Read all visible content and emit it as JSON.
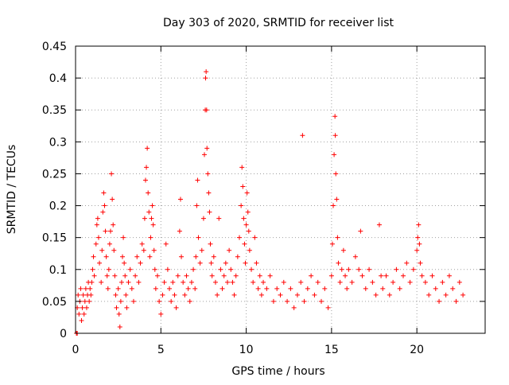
{
  "chart_data": {
    "type": "scatter",
    "title": "Day 303 of 2020, SRMTID for receiver list",
    "xlabel": "GPS time / hours",
    "ylabel": "SRMTID / TECUs",
    "xlim": [
      0,
      24
    ],
    "ylim": [
      0,
      0.45
    ],
    "grid": true,
    "marker": "+",
    "marker_color": "#ff0000",
    "x_ticks": [
      {
        "value": 0,
        "label": "0"
      },
      {
        "value": 5,
        "label": "5"
      },
      {
        "value": 10,
        "label": "10"
      },
      {
        "value": 15,
        "label": "15"
      },
      {
        "value": 20,
        "label": "20"
      }
    ],
    "y_ticks": [
      {
        "value": 0,
        "label": "0"
      },
      {
        "value": 0.05,
        "label": "0.05"
      },
      {
        "value": 0.1,
        "label": "0.1"
      },
      {
        "value": 0.15,
        "label": "0.15"
      },
      {
        "value": 0.2,
        "label": "0.2"
      },
      {
        "value": 0.25,
        "label": "0.25"
      },
      {
        "value": 0.3,
        "label": "0.3"
      },
      {
        "value": 0.35,
        "label": "0.35"
      },
      {
        "value": 0.4,
        "label": "0.4"
      },
      {
        "value": 0.45,
        "label": "0.45"
      }
    ],
    "series": [
      {
        "name": "SRMTID",
        "points": [
          [
            0.05,
            0.0
          ],
          [
            0.1,
            0.0
          ],
          [
            0.1,
            0.04
          ],
          [
            0.15,
            0.06
          ],
          [
            0.2,
            0.03
          ],
          [
            0.25,
            0.05
          ],
          [
            0.3,
            0.07
          ],
          [
            0.35,
            0.02
          ],
          [
            0.4,
            0.04
          ],
          [
            0.45,
            0.06
          ],
          [
            0.5,
            0.03
          ],
          [
            0.55,
            0.05
          ],
          [
            0.6,
            0.07
          ],
          [
            0.65,
            0.04
          ],
          [
            0.7,
            0.06
          ],
          [
            0.75,
            0.08
          ],
          [
            0.8,
            0.05
          ],
          [
            0.85,
            0.07
          ],
          [
            0.9,
            0.06
          ],
          [
            0.95,
            0.08
          ],
          [
            1.0,
            0.1
          ],
          [
            1.05,
            0.12
          ],
          [
            1.1,
            0.09
          ],
          [
            1.2,
            0.14
          ],
          [
            1.25,
            0.17
          ],
          [
            1.3,
            0.18
          ],
          [
            1.35,
            0.15
          ],
          [
            1.4,
            0.11
          ],
          [
            1.5,
            0.08
          ],
          [
            1.55,
            0.13
          ],
          [
            1.6,
            0.19
          ],
          [
            1.65,
            0.22
          ],
          [
            1.7,
            0.2
          ],
          [
            1.75,
            0.16
          ],
          [
            1.8,
            0.12
          ],
          [
            1.85,
            0.09
          ],
          [
            1.9,
            0.07
          ],
          [
            1.95,
            0.1
          ],
          [
            2.0,
            0.14
          ],
          [
            2.05,
            0.16
          ],
          [
            2.1,
            0.25
          ],
          [
            2.15,
            0.21
          ],
          [
            2.2,
            0.17
          ],
          [
            2.25,
            0.13
          ],
          [
            2.3,
            0.09
          ],
          [
            2.35,
            0.06
          ],
          [
            2.4,
            0.04
          ],
          [
            2.5,
            0.07
          ],
          [
            2.55,
            0.03
          ],
          [
            2.6,
            0.01
          ],
          [
            2.65,
            0.05
          ],
          [
            2.7,
            0.08
          ],
          [
            2.75,
            0.12
          ],
          [
            2.8,
            0.15
          ],
          [
            2.85,
            0.11
          ],
          [
            2.9,
            0.09
          ],
          [
            2.95,
            0.06
          ],
          [
            3.0,
            0.04
          ],
          [
            3.1,
            0.08
          ],
          [
            3.2,
            0.1
          ],
          [
            3.3,
            0.07
          ],
          [
            3.4,
            0.05
          ],
          [
            3.5,
            0.09
          ],
          [
            3.6,
            0.12
          ],
          [
            3.7,
            0.08
          ],
          [
            3.8,
            0.11
          ],
          [
            3.9,
            0.14
          ],
          [
            4.0,
            0.13
          ],
          [
            4.05,
            0.18
          ],
          [
            4.1,
            0.24
          ],
          [
            4.15,
            0.26
          ],
          [
            4.2,
            0.29
          ],
          [
            4.25,
            0.22
          ],
          [
            4.3,
            0.19
          ],
          [
            4.35,
            0.12
          ],
          [
            4.4,
            0.15
          ],
          [
            4.45,
            0.18
          ],
          [
            4.5,
            0.2
          ],
          [
            4.55,
            0.17
          ],
          [
            4.6,
            0.13
          ],
          [
            4.65,
            0.1
          ],
          [
            4.7,
            0.07
          ],
          [
            4.8,
            0.09
          ],
          [
            4.9,
            0.05
          ],
          [
            5.0,
            0.03
          ],
          [
            5.1,
            0.06
          ],
          [
            5.2,
            0.08
          ],
          [
            5.3,
            0.14
          ],
          [
            5.4,
            0.1
          ],
          [
            5.5,
            0.07
          ],
          [
            5.6,
            0.05
          ],
          [
            5.7,
            0.08
          ],
          [
            5.8,
            0.06
          ],
          [
            5.9,
            0.04
          ],
          [
            6.0,
            0.09
          ],
          [
            6.1,
            0.16
          ],
          [
            6.15,
            0.21
          ],
          [
            6.2,
            0.12
          ],
          [
            6.3,
            0.08
          ],
          [
            6.4,
            0.06
          ],
          [
            6.5,
            0.09
          ],
          [
            6.6,
            0.07
          ],
          [
            6.7,
            0.05
          ],
          [
            6.8,
            0.08
          ],
          [
            6.9,
            0.1
          ],
          [
            7.0,
            0.07
          ],
          [
            7.05,
            0.12
          ],
          [
            7.1,
            0.2
          ],
          [
            7.15,
            0.24
          ],
          [
            7.2,
            0.15
          ],
          [
            7.3,
            0.11
          ],
          [
            7.4,
            0.13
          ],
          [
            7.5,
            0.18
          ],
          [
            7.55,
            0.28
          ],
          [
            7.6,
            0.35
          ],
          [
            7.62,
            0.4
          ],
          [
            7.65,
            0.41
          ],
          [
            7.68,
            0.35
          ],
          [
            7.7,
            0.29
          ],
          [
            7.75,
            0.25
          ],
          [
            7.8,
            0.22
          ],
          [
            7.85,
            0.19
          ],
          [
            7.9,
            0.14
          ],
          [
            7.95,
            0.11
          ],
          [
            8.0,
            0.09
          ],
          [
            8.1,
            0.12
          ],
          [
            8.2,
            0.08
          ],
          [
            8.3,
            0.06
          ],
          [
            8.4,
            0.18
          ],
          [
            8.5,
            0.1
          ],
          [
            8.6,
            0.07
          ],
          [
            8.7,
            0.09
          ],
          [
            8.8,
            0.11
          ],
          [
            8.9,
            0.08
          ],
          [
            9.0,
            0.13
          ],
          [
            9.1,
            0.1
          ],
          [
            9.2,
            0.08
          ],
          [
            9.3,
            0.06
          ],
          [
            9.4,
            0.09
          ],
          [
            9.5,
            0.12
          ],
          [
            9.6,
            0.15
          ],
          [
            9.7,
            0.2
          ],
          [
            9.75,
            0.26
          ],
          [
            9.8,
            0.23
          ],
          [
            9.85,
            0.18
          ],
          [
            9.9,
            0.14
          ],
          [
            9.95,
            0.11
          ],
          [
            10.0,
            0.17
          ],
          [
            10.05,
            0.22
          ],
          [
            10.1,
            0.19
          ],
          [
            10.15,
            0.16
          ],
          [
            10.2,
            0.13
          ],
          [
            10.3,
            0.1
          ],
          [
            10.4,
            0.08
          ],
          [
            10.5,
            0.15
          ],
          [
            10.6,
            0.11
          ],
          [
            10.7,
            0.07
          ],
          [
            10.8,
            0.09
          ],
          [
            10.9,
            0.06
          ],
          [
            11.0,
            0.08
          ],
          [
            11.2,
            0.07
          ],
          [
            11.4,
            0.09
          ],
          [
            11.6,
            0.05
          ],
          [
            11.8,
            0.07
          ],
          [
            12.0,
            0.06
          ],
          [
            12.2,
            0.08
          ],
          [
            12.4,
            0.05
          ],
          [
            12.6,
            0.07
          ],
          [
            12.8,
            0.04
          ],
          [
            13.0,
            0.06
          ],
          [
            13.2,
            0.08
          ],
          [
            13.3,
            0.31
          ],
          [
            13.4,
            0.05
          ],
          [
            13.6,
            0.07
          ],
          [
            13.8,
            0.09
          ],
          [
            14.0,
            0.06
          ],
          [
            14.2,
            0.08
          ],
          [
            14.4,
            0.05
          ],
          [
            14.6,
            0.07
          ],
          [
            14.8,
            0.04
          ],
          [
            15.0,
            0.09
          ],
          [
            15.05,
            0.14
          ],
          [
            15.1,
            0.2
          ],
          [
            15.15,
            0.28
          ],
          [
            15.2,
            0.34
          ],
          [
            15.22,
            0.31
          ],
          [
            15.25,
            0.25
          ],
          [
            15.3,
            0.21
          ],
          [
            15.35,
            0.15
          ],
          [
            15.4,
            0.11
          ],
          [
            15.5,
            0.08
          ],
          [
            15.6,
            0.1
          ],
          [
            15.7,
            0.13
          ],
          [
            15.8,
            0.09
          ],
          [
            15.9,
            0.07
          ],
          [
            16.0,
            0.1
          ],
          [
            16.2,
            0.08
          ],
          [
            16.4,
            0.12
          ],
          [
            16.6,
            0.1
          ],
          [
            16.7,
            0.16
          ],
          [
            16.8,
            0.09
          ],
          [
            17.0,
            0.07
          ],
          [
            17.2,
            0.1
          ],
          [
            17.4,
            0.08
          ],
          [
            17.6,
            0.06
          ],
          [
            17.8,
            0.17
          ],
          [
            17.9,
            0.09
          ],
          [
            18.0,
            0.07
          ],
          [
            18.2,
            0.09
          ],
          [
            18.4,
            0.06
          ],
          [
            18.6,
            0.08
          ],
          [
            18.8,
            0.1
          ],
          [
            19.0,
            0.07
          ],
          [
            19.2,
            0.09
          ],
          [
            19.4,
            0.11
          ],
          [
            19.6,
            0.08
          ],
          [
            19.8,
            0.1
          ],
          [
            20.0,
            0.13
          ],
          [
            20.05,
            0.15
          ],
          [
            20.1,
            0.17
          ],
          [
            20.15,
            0.14
          ],
          [
            20.2,
            0.11
          ],
          [
            20.3,
            0.09
          ],
          [
            20.5,
            0.08
          ],
          [
            20.7,
            0.06
          ],
          [
            20.9,
            0.09
          ],
          [
            21.1,
            0.07
          ],
          [
            21.3,
            0.05
          ],
          [
            21.5,
            0.08
          ],
          [
            21.7,
            0.06
          ],
          [
            21.9,
            0.09
          ],
          [
            22.1,
            0.07
          ],
          [
            22.3,
            0.05
          ],
          [
            22.5,
            0.08
          ],
          [
            22.7,
            0.06
          ]
        ]
      }
    ]
  }
}
